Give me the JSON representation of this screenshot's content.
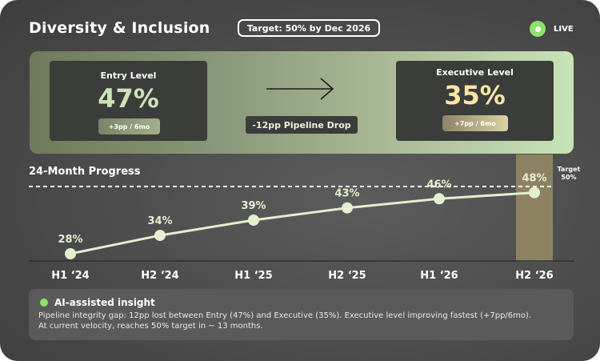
{
  "header": {
    "title": "Diversity & Inclusion",
    "target_label": "Target: 50% by Dec 2026",
    "live_label": "LIVE"
  },
  "pipeline": {
    "entry": {
      "label": "Entry Level",
      "value": "47%",
      "change": "+3pp / 6mo"
    },
    "executive": {
      "label": "Executive Level",
      "value": "35%",
      "change": "+7pp / 6mo"
    },
    "drop_label": "-12pp Pipeline Drop"
  },
  "progress": {
    "title": "24-Month Progress",
    "target_line_label": [
      "Target",
      "50%"
    ]
  },
  "chart_data": {
    "type": "line",
    "title": "24-Month Progress",
    "categories": [
      "H1 ‘24",
      "H2 ‘24",
      "H1 ‘25",
      "H2 ‘25",
      "H1 ‘26",
      "H2 ‘26"
    ],
    "values": [
      28,
      34,
      39,
      43,
      46,
      48
    ],
    "value_labels": [
      "28%",
      "34%",
      "39%",
      "43%",
      "46%",
      "48%"
    ],
    "target": 50,
    "highlight_category": "H2 ‘26",
    "ylim": [
      25,
      52
    ],
    "colors": {
      "line": "#e3efcf",
      "highlight": "#8f8563"
    }
  },
  "insight": {
    "title": "AI-assisted insight",
    "text_line1": "Pipeline integrity gap: 12pp lost between Entry (47%) and Executive (35%). Executive level improving fastest (+7pp/6mo).",
    "text_line2": "At current velocity, reaches 50% target in ~ 13 months."
  },
  "colors": {
    "accent_green": "#8ee36c",
    "entry_value": "#cde2b9",
    "exec_value": "#fbe6a6"
  }
}
